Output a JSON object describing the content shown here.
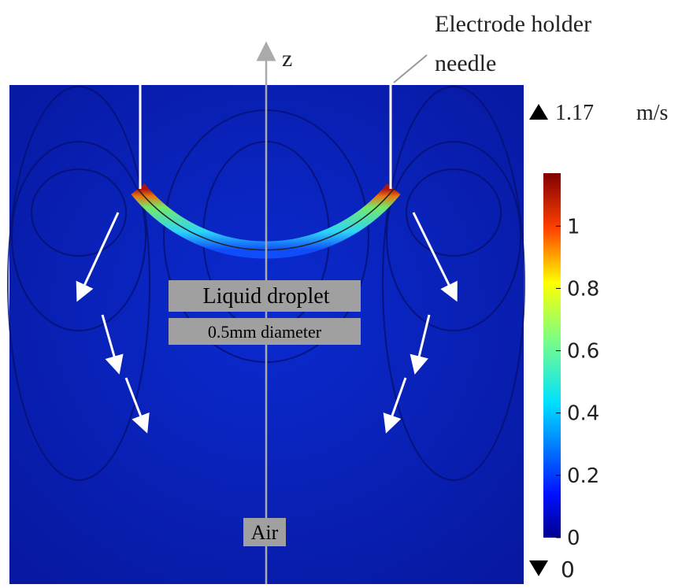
{
  "axis_label": "z",
  "needle_label": {
    "line1": "Electrode holder",
    "line2": "needle"
  },
  "regions": {
    "droplet": "Liquid droplet",
    "droplet_size": "0.5mm diameter",
    "outside": "Air"
  },
  "colorbar": {
    "max": 1.17,
    "unit": "m/s",
    "min": 0,
    "ticks": [
      1,
      0.8,
      0.6,
      0.4,
      0.2,
      0
    ]
  }
}
